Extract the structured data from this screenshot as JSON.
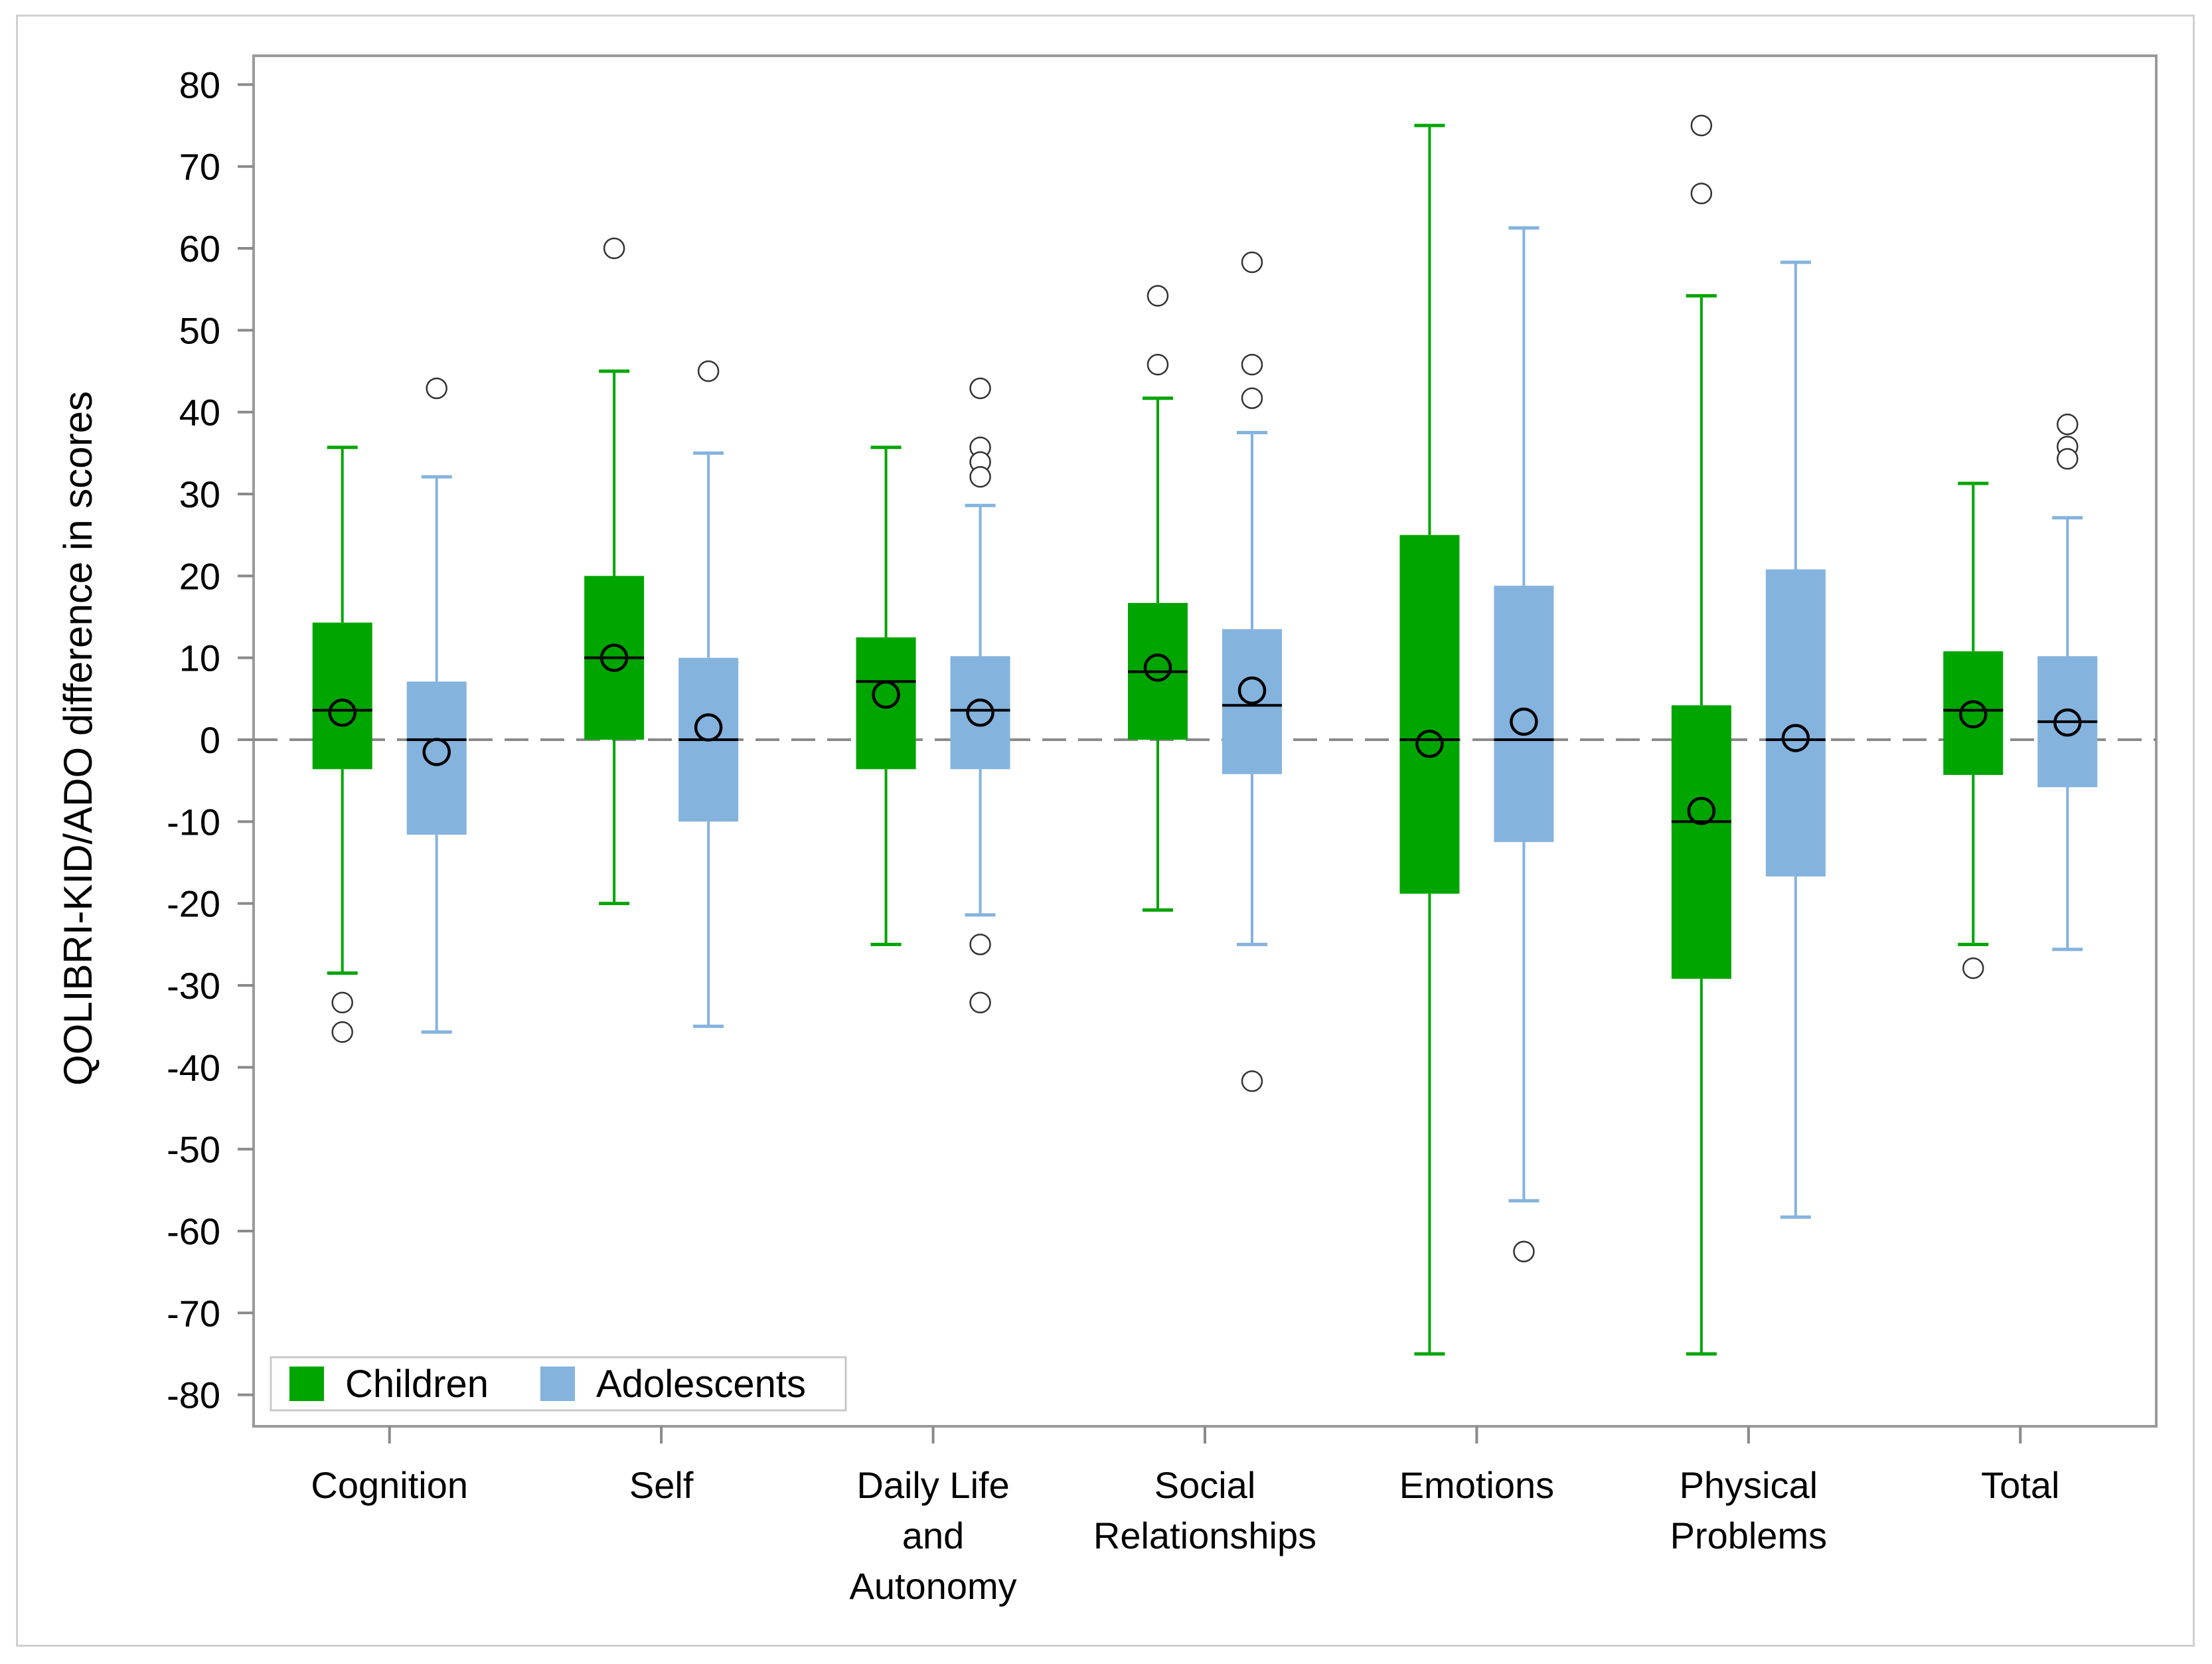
{
  "chart_data": {
    "type": "boxplot",
    "title": "",
    "xlabel": "",
    "ylabel": "QOLIBRI-KID/ADO difference in scores",
    "ylim": [
      -84,
      86
    ],
    "yticks": [
      80,
      70,
      60,
      50,
      40,
      30,
      20,
      10,
      0,
      -10,
      -20,
      -30,
      -40,
      -50,
      -60,
      -70,
      -80
    ],
    "reference_line": 0,
    "legend": {
      "position": "bottom-left",
      "entries": [
        "Children",
        "Adolescents"
      ]
    },
    "colors": {
      "Children": "#00a500",
      "Adolescents": "#84b3de"
    },
    "categories": [
      [
        "Cognition"
      ],
      [
        "Self"
      ],
      [
        "Daily Life",
        "and",
        "Autonomy"
      ],
      [
        "Social",
        "Relationships"
      ],
      [
        "Emotions"
      ],
      [
        "Physical",
        "Problems"
      ],
      [
        "Total"
      ]
    ],
    "series": [
      {
        "name": "Children",
        "boxes": [
          {
            "whisker_low": -28.5,
            "q1": -3.6,
            "median": 3.6,
            "q3": 14.3,
            "whisker_high": 35.7,
            "mean": 3.3,
            "outliers": [
              -32.1,
              -35.7
            ]
          },
          {
            "whisker_low": -20,
            "q1": 0,
            "median": 10,
            "q3": 20,
            "whisker_high": 45,
            "mean": 10,
            "outliers": [
              60
            ]
          },
          {
            "whisker_low": -25,
            "q1": -3.6,
            "median": 7.1,
            "q3": 12.5,
            "whisker_high": 35.7,
            "mean": 5.5,
            "outliers": []
          },
          {
            "whisker_low": -20.8,
            "q1": 0,
            "median": 8.3,
            "q3": 16.7,
            "whisker_high": 41.7,
            "mean": 8.8,
            "outliers": [
              54.2,
              45.8
            ]
          },
          {
            "whisker_low": -75,
            "q1": -18.8,
            "median": 0,
            "q3": 25,
            "whisker_high": 75,
            "mean": -0.5,
            "outliers": []
          },
          {
            "whisker_low": -75,
            "q1": -29.2,
            "median": -10,
            "q3": 4.2,
            "whisker_high": 54.2,
            "mean": -8.7,
            "outliers": [
              75,
              66.7
            ]
          },
          {
            "whisker_low": -25,
            "q1": -4.3,
            "median": 3.6,
            "q3": 10.8,
            "whisker_high": 31.3,
            "mean": 3.1,
            "outliers": [
              -27.9
            ]
          }
        ]
      },
      {
        "name": "Adolescents",
        "boxes": [
          {
            "whisker_low": -35.7,
            "q1": -11.6,
            "median": 0,
            "q3": 7.1,
            "whisker_high": 32.1,
            "mean": -1.5,
            "outliers": [
              42.9
            ]
          },
          {
            "whisker_low": -35,
            "q1": -10,
            "median": 0,
            "q3": 10,
            "whisker_high": 35,
            "mean": 1.5,
            "outliers": [
              45
            ]
          },
          {
            "whisker_low": -21.4,
            "q1": -3.6,
            "median": 3.6,
            "q3": 10.2,
            "whisker_high": 28.6,
            "mean": 3.3,
            "outliers": [
              42.9,
              35.7,
              33.9,
              32.1,
              -25,
              -32.1
            ]
          },
          {
            "whisker_low": -25,
            "q1": -4.2,
            "median": 4.2,
            "q3": 13.5,
            "whisker_high": 37.5,
            "mean": 6,
            "outliers": [
              58.3,
              45.8,
              41.7,
              -41.7
            ]
          },
          {
            "whisker_low": -56.3,
            "q1": -12.5,
            "median": 0,
            "q3": 18.8,
            "whisker_high": 62.5,
            "mean": 2.2,
            "outliers": [
              -62.5
            ]
          },
          {
            "whisker_low": -58.3,
            "q1": -16.7,
            "median": 0,
            "q3": 20.8,
            "whisker_high": 58.3,
            "mean": 0.2,
            "outliers": []
          },
          {
            "whisker_low": -25.6,
            "q1": -5.8,
            "median": 2.2,
            "q3": 10.2,
            "whisker_high": 27.1,
            "mean": 2.1,
            "outliers": [
              38.5,
              35.8,
              34.3
            ]
          }
        ]
      }
    ]
  }
}
